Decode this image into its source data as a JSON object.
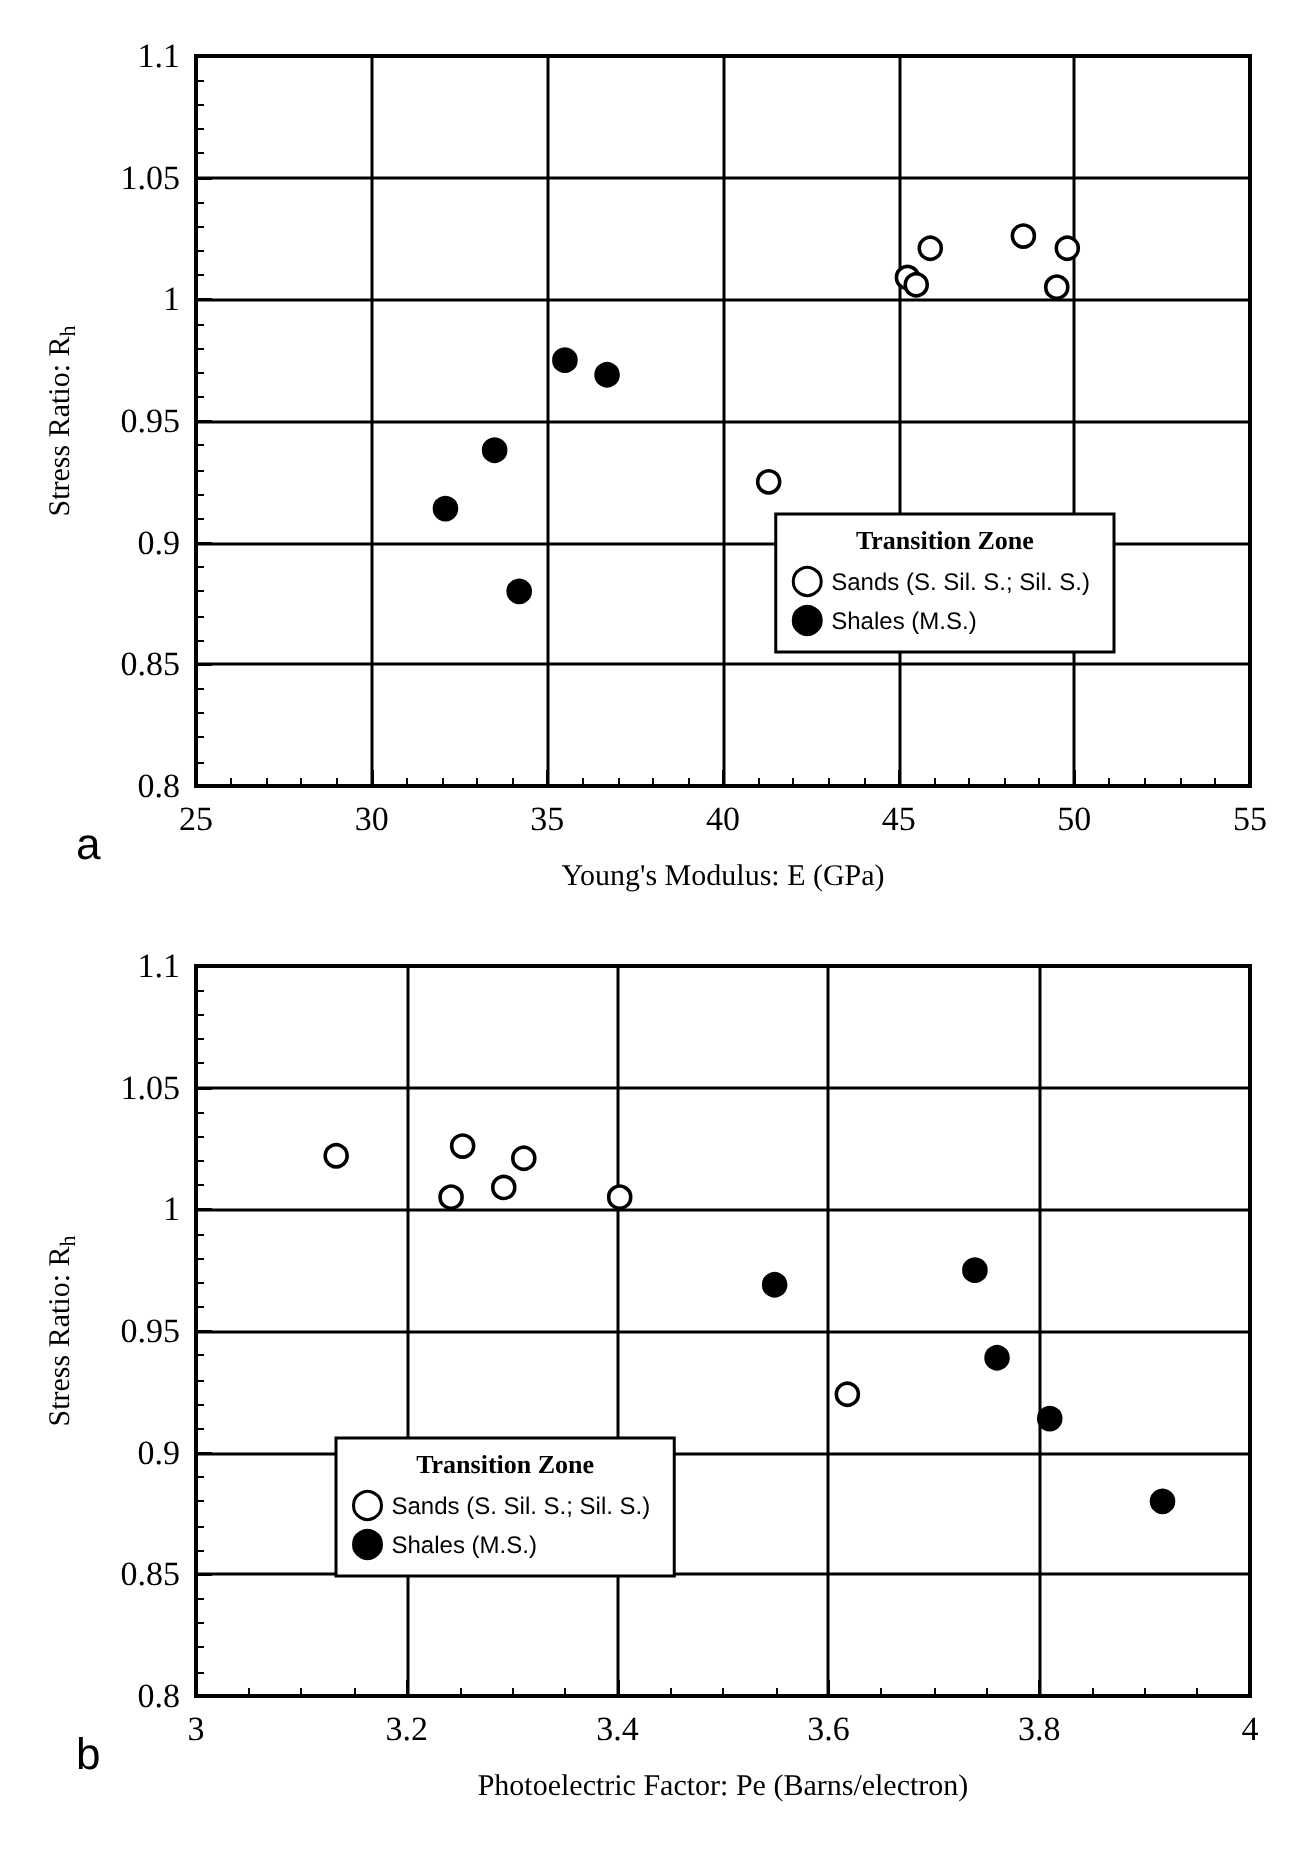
{
  "chart_data": [
    {
      "type": "scatter",
      "xlabel": "Young's Modulus: E (GPa)",
      "ylabel": "Stress Ratio: R$_{h}$",
      "legend_title": "Transition Zone",
      "annotations": [
        "a"
      ],
      "xlim": [
        25,
        55
      ],
      "xticks": [
        25,
        30,
        35,
        40,
        45,
        50,
        55
      ],
      "ylim": [
        0.8,
        1.1
      ],
      "yticks": [
        0.8,
        0.85,
        0.9,
        0.95,
        1,
        1.05,
        1.1
      ],
      "grid": true,
      "legend": "bottom right",
      "marker": "circle",
      "series": [
        {
          "name": "Sands (S. Sil. S.; Sil. S.)",
          "color": "#ffffff",
          "x": [
            45.25,
            45.5,
            45.9,
            48.55,
            49.8,
            49.5,
            41.3
          ],
          "values": [
            1.009,
            1.006,
            1.021,
            1.026,
            1.021,
            1.005,
            0.925
          ]
        },
        {
          "name": "Shales (M.S.)",
          "color": "#000000",
          "x": [
            32.1,
            33.5,
            34.2,
            35.5,
            36.7
          ],
          "values": [
            0.914,
            0.938,
            0.88,
            0.975,
            0.969
          ]
        }
      ]
    },
    {
      "type": "scatter",
      "xlabel": "Photoelectric Factor: Pe (Barns/electron)",
      "ylabel": "Stress Ratio: R$_{h}$",
      "legend_title": "Transition Zone",
      "annotations": [
        "b"
      ],
      "xlim": [
        3,
        4
      ],
      "xticks": [
        3,
        3.2,
        3.4,
        3.6,
        3.8,
        4
      ],
      "ylim": [
        0.8,
        1.1
      ],
      "yticks": [
        0.8,
        0.85,
        0.9,
        0.95,
        1,
        1.05,
        1.1
      ],
      "grid": true,
      "legend": "bottom left",
      "marker": "circle",
      "series": [
        {
          "name": "Sands (S. Sil. S.; Sil. S.)",
          "color": "#ffffff",
          "x": [
            3.133,
            3.253,
            3.242,
            3.292,
            3.311,
            3.402,
            3.618
          ],
          "values": [
            1.022,
            1.026,
            1.005,
            1.009,
            1.021,
            1.005,
            0.924
          ]
        },
        {
          "name": "Shales (M.S.)",
          "color": "#000000",
          "x": [
            3.549,
            3.739,
            3.76,
            3.81,
            3.917
          ],
          "values": [
            0.969,
            0.975,
            0.939,
            0.914,
            0.88
          ]
        }
      ]
    }
  ]
}
